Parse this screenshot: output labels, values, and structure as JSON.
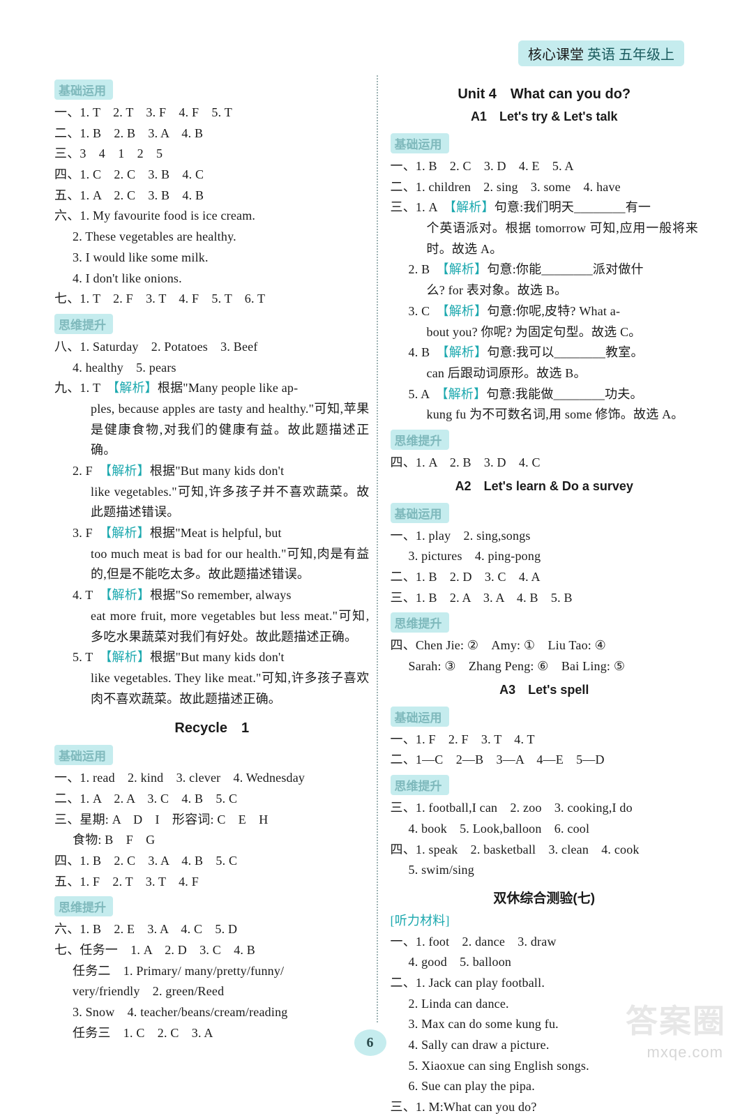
{
  "header": {
    "main": "核心课堂",
    "sub": "英语 五年级上"
  },
  "pageNumber": "6",
  "watermark1": "答案圈",
  "watermark2": "mxqe.com",
  "tags": {
    "jichu": "基础运用",
    "siwei": "思维提升",
    "tingli": "[听力材料]"
  },
  "left": {
    "l1": "一、1. T　2. T　3. F　4. F　5. T",
    "l2": "二、1. B　2. B　3. A　4. B",
    "l3": "三、3　4　1　2　5",
    "l4": "四、1. C　2. C　3. B　4. C",
    "l5": "五、1. A　2. C　3. B　4. B",
    "l6": "六、1. My favourite food is ice cream.",
    "l6b": "2. These vegetables are healthy.",
    "l6c": "3. I would like some milk.",
    "l6d": "4. I don't like onions.",
    "l7": "七、1. T　2. F　3. T　4. F　5. T　6. T",
    "l8": "八、1. Saturday　2. Potatoes　3. Beef",
    "l8b": "4. healthy　5. pears",
    "l9a1": "九、1. T　",
    "l9a2": "【解析】",
    "l9a3": "根据\"Many people like ap-",
    "l9a4": "ples, because apples are tasty and healthy.\"可知,苹果是健康食物,对我们的健康有益。故此题描述正确。",
    "l9b1": "2. F　",
    "l9b2": "【解析】",
    "l9b3": "根据\"But many kids don't",
    "l9b4": "like vegetables.\"可知,许多孩子并不喜欢蔬菜。故此题描述错误。",
    "l9c1": "3. F　",
    "l9c2": "【解析】",
    "l9c3": "根据\"Meat is helpful, but",
    "l9c4": "too much meat is bad for our health.\"可知,肉是有益的,但是不能吃太多。故此题描述错误。",
    "l9d1": "4. T　",
    "l9d2": "【解析】",
    "l9d3": "根据\"So remember, always",
    "l9d4": "eat more fruit, more vegetables but less meat.\"可知,多吃水果蔬菜对我们有好处。故此题描述正确。",
    "l9e1": "5. T　",
    "l9e2": "【解析】",
    "l9e3": "根据\"But many kids don't",
    "l9e4": "like vegetables. They like meat.\"可知,许多孩子喜欢肉不喜欢蔬菜。故此题描述正确。",
    "recycle": "Recycle　1",
    "r1": "一、1. read　2. kind　3. clever　4. Wednesday",
    "r2": "二、1. A　2. A　3. C　4. B　5. C",
    "r3a": "三、星期: A　D　I　形容词: C　E　H",
    "r3b": "食物: B　F　G",
    "r4": "四、1. B　2. C　3. A　4. B　5. C",
    "r5": "五、1. F　2. T　3. T　4. F",
    "r6": "六、1. B　2. E　3. A　4. C　5. D",
    "r7a": "七、任务一　1. A　2. D　3. C　4. B",
    "r7b": "任务二　1. Primary/ many/pretty/funny/",
    "r7c": "very/friendly　2. green/Reed",
    "r7d": "3. Snow　4. teacher/beans/cream/reading",
    "r7e": "任务三　1. C　2. C　3. A"
  },
  "right": {
    "unit": "Unit 4　What can you do?",
    "a1": "A1　Let's try & Let's talk",
    "u1": "一、1. B　2. C　3. D　4. E　5. A",
    "u2": "二、1. children　2. sing　3. some　4. have",
    "u3a1": "三、1. A　",
    "u3a2": "【解析】",
    "u3a3": "句意:我们明天________有一",
    "u3a4": "个英语派对。根据 tomorrow 可知,应用一般将来时。故选 A。",
    "u3b1": "2. B　",
    "u3b2": "【解析】",
    "u3b3": "句意:你能________派对做什",
    "u3b4": "么? for 表对象。故选 B。",
    "u3c1": "3. C　",
    "u3c2": "【解析】",
    "u3c3": "句意:你呢,皮特? What a-",
    "u3c4": "bout you? 你呢? 为固定句型。故选 C。",
    "u3d1": "4. B　",
    "u3d2": "【解析】",
    "u3d3": "句意:我可以________教室。",
    "u3d4": "can 后跟动词原形。故选 B。",
    "u3e1": "5. A　",
    "u3e2": "【解析】",
    "u3e3": "句意:我能做________功夫。",
    "u3e4": "kung fu 为不可数名词,用 some 修饰。故选 A。",
    "u4": "四、1. A　2. B　3. D　4. C",
    "a2": "A2　Let's learn & Do a survey",
    "a2l1": "一、1. play　2. sing,songs",
    "a2l1b": "3. pictures　4. ping-pong",
    "a2l2": "二、1. B　2. D　3. C　4. A",
    "a2l3": "三、1. B　2. A　3. A　4. B　5. B",
    "a2l4a": "四、Chen Jie: ②　Amy: ①　Liu Tao: ④",
    "a2l4b": "Sarah: ③　Zhang Peng: ⑥　Bai Ling: ⑤",
    "a3": "A3　Let's spell",
    "a3l1": "一、1. F　2. F　3. T　4. T",
    "a3l2": "二、1—C　2—B　3—A　4—E　5—D",
    "a3l3a": "三、1. football,I can　2. zoo　3. cooking,I do",
    "a3l3b": "4. book　5. Look,balloon　6. cool",
    "a3l4a": "四、1. speak　2. basketball　3. clean　4. cook",
    "a3l4b": "5. swim/sing",
    "test": "双休综合测验(七)",
    "t1": "一、1. foot　2. dance　3. draw",
    "t1b": "4. good　5. balloon",
    "t2a": "二、1. Jack can play football.",
    "t2b": "2. Linda can dance.",
    "t2c": "3. Max can do some kung fu.",
    "t2d": "4. Sally can draw a picture.",
    "t2e": "5. Xiaoxue can sing English songs.",
    "t2f": "6. Sue can play the pipa.",
    "t3": "三、1. M:What can you do?"
  }
}
